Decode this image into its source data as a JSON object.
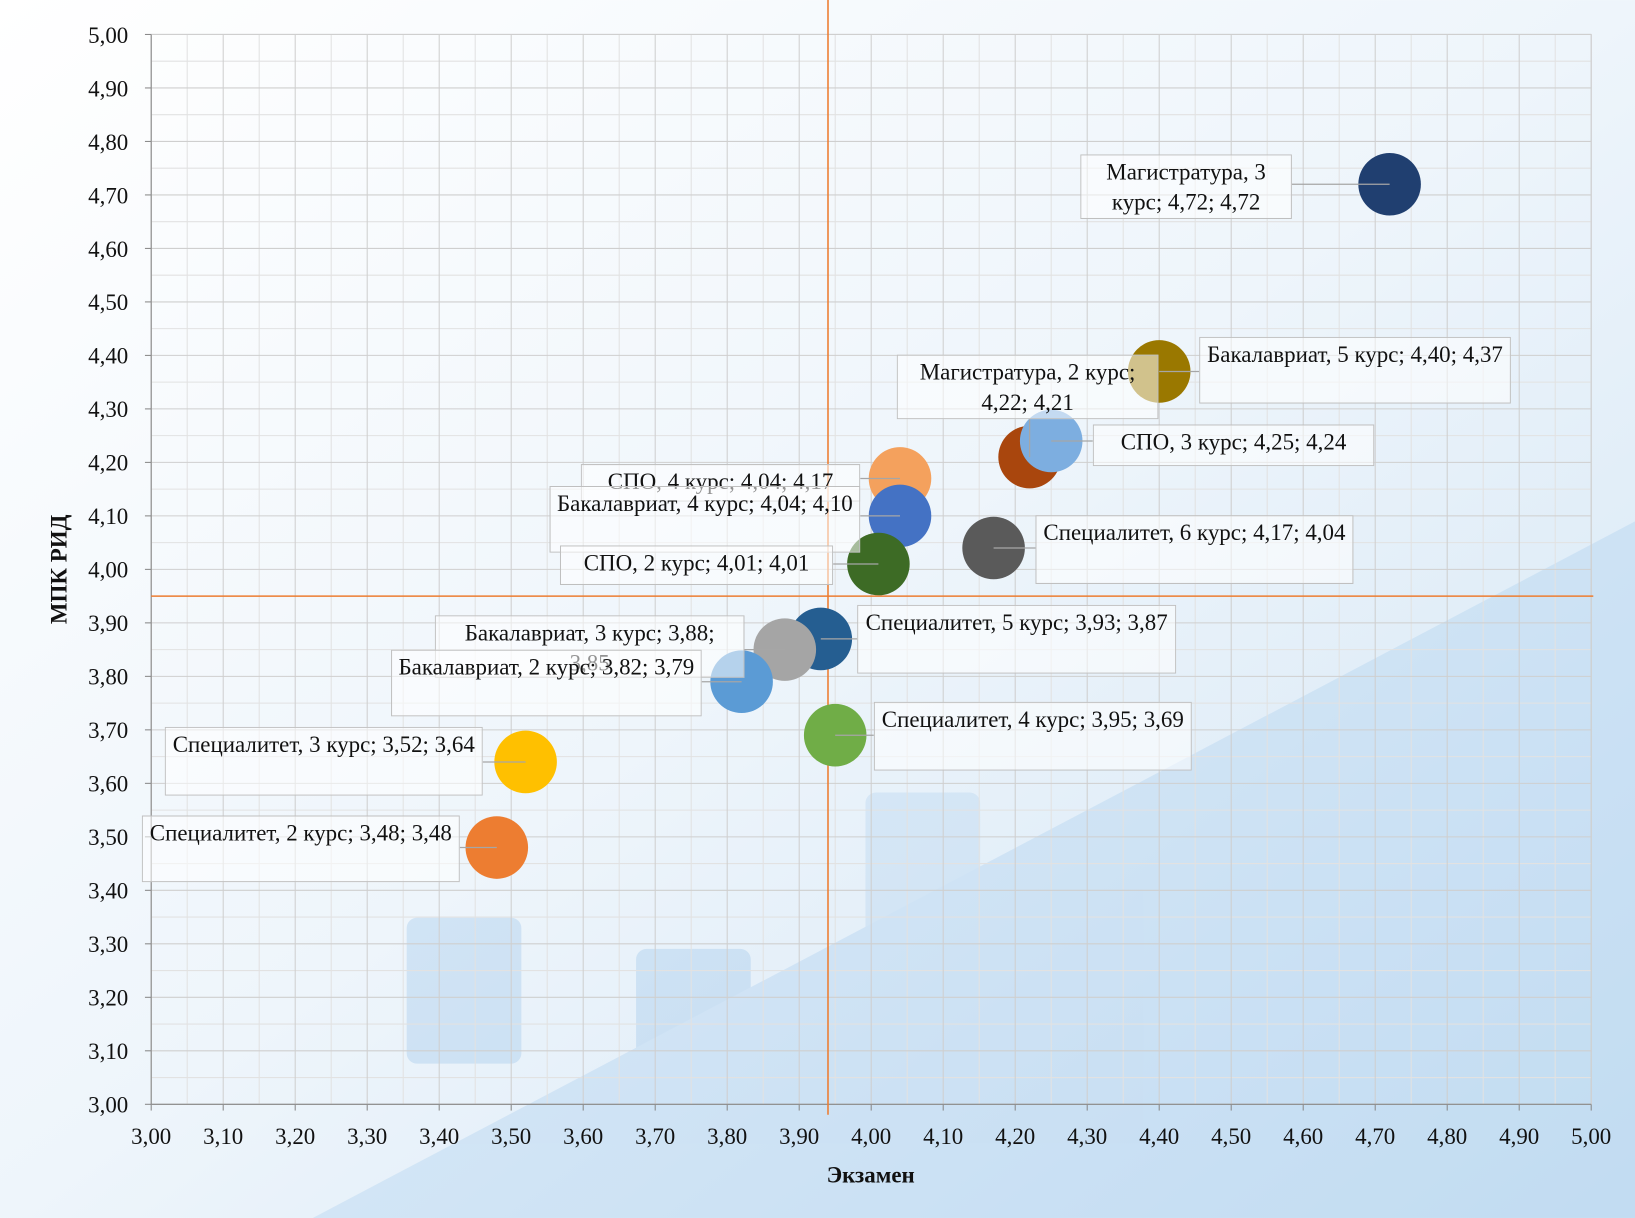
{
  "chart_data": {
    "type": "bubble",
    "x_label": "Экзамен",
    "y_label": "МПК РИД",
    "xlim": [
      3,
      5
    ],
    "ylim": [
      3,
      5
    ],
    "xticks": [
      {
        "value": 3,
        "label": "3,00"
      },
      {
        "value": 3.1,
        "label": "3,10"
      },
      {
        "value": 3.2,
        "label": "3,20"
      },
      {
        "value": 3.3,
        "label": "3,30"
      },
      {
        "value": 3.4,
        "label": "3,40"
      },
      {
        "value": 3.5,
        "label": "3,50"
      },
      {
        "value": 3.6,
        "label": "3,60"
      },
      {
        "value": 3.7,
        "label": "3,70"
      },
      {
        "value": 3.8,
        "label": "3,80"
      },
      {
        "value": 3.9,
        "label": "3,90"
      },
      {
        "value": 4,
        "label": "4,00"
      },
      {
        "value": 4.1,
        "label": "4,10"
      },
      {
        "value": 4.2,
        "label": "4,20"
      },
      {
        "value": 4.3,
        "label": "4,30"
      },
      {
        "value": 4.4,
        "label": "4,40"
      },
      {
        "value": 4.5,
        "label": "4,50"
      },
      {
        "value": 4.6,
        "label": "4,60"
      },
      {
        "value": 4.7,
        "label": "4,70"
      },
      {
        "value": 4.8,
        "label": "4,80"
      },
      {
        "value": 4.9,
        "label": "4,90"
      },
      {
        "value": 5,
        "label": "5,00"
      }
    ],
    "yticks": [
      {
        "value": 3,
        "label": "3,00"
      },
      {
        "value": 3.1,
        "label": "3,10"
      },
      {
        "value": 3.2,
        "label": "3,20"
      },
      {
        "value": 3.3,
        "label": "3,30"
      },
      {
        "value": 3.4,
        "label": "3,40"
      },
      {
        "value": 3.5,
        "label": "3,50"
      },
      {
        "value": 3.6,
        "label": "3,60"
      },
      {
        "value": 3.7,
        "label": "3,70"
      },
      {
        "value": 3.8,
        "label": "3,80"
      },
      {
        "value": 3.9,
        "label": "3,90"
      },
      {
        "value": 4,
        "label": "4,00"
      },
      {
        "value": 4.1,
        "label": "4,10"
      },
      {
        "value": 4.2,
        "label": "4,20"
      },
      {
        "value": 4.3,
        "label": "4,30"
      },
      {
        "value": 4.4,
        "label": "4,40"
      },
      {
        "value": 4.5,
        "label": "4,50"
      },
      {
        "value": 4.6,
        "label": "4,60"
      },
      {
        "value": 4.7,
        "label": "4,70"
      },
      {
        "value": 4.8,
        "label": "4,80"
      },
      {
        "value": 4.9,
        "label": "4,90"
      },
      {
        "value": 5,
        "label": "5,00"
      }
    ],
    "grid": true,
    "minor_grid": true,
    "reference_lines": {
      "x": 3.94,
      "y": 3.95,
      "color": "#ed7d31"
    },
    "points": [
      {
        "label": "Магистратура, 3 курс; 4,72; 4,72",
        "x": 4.72,
        "y": 4.72,
        "color": "#203f70"
      },
      {
        "label": "Бакалавриат, 5 курс; 4,40; 4,37",
        "x": 4.4,
        "y": 4.37,
        "color": "#9a7800"
      },
      {
        "label": "Магистратура, 2 курс; 4,22; 4,21",
        "x": 4.22,
        "y": 4.21,
        "color": "#a9460d"
      },
      {
        "label": "СПО, 3 курс; 4,25; 4,24",
        "x": 4.25,
        "y": 4.24,
        "color": "#7daee0"
      },
      {
        "label": "СПО, 4 курс; 4,04; 4,17",
        "x": 4.04,
        "y": 4.17,
        "color": "#f4a15d"
      },
      {
        "label": "Бакалавриат, 4 курс; 4,04; 4,10",
        "x": 4.04,
        "y": 4.1,
        "color": "#4472c4"
      },
      {
        "label": "СПО, 2 курс; 4,01; 4,01",
        "x": 4.01,
        "y": 4.01,
        "color": "#3d6b25"
      },
      {
        "label": "Специалитет, 6 курс; 4,17; 4,04",
        "x": 4.17,
        "y": 4.04,
        "color": "#5a5a5a"
      },
      {
        "label": "Специалитет, 5 курс; 3,93; 3,87",
        "x": 3.93,
        "y": 3.87,
        "color": "#255e91"
      },
      {
        "label": "Бакалавриат, 3 курс; 3,88; 3,85",
        "x": 3.88,
        "y": 3.85,
        "color": "#a5a5a5"
      },
      {
        "label": "Бакалавриат, 2 курс; 3,82; 3,79",
        "x": 3.82,
        "y": 3.79,
        "color": "#5b9bd5"
      },
      {
        "label": "Специалитет, 4 курс; 3,95; 3,69",
        "x": 3.95,
        "y": 3.69,
        "color": "#70ad47"
      },
      {
        "label": "Специалитет, 3 курс; 3,52; 3,64",
        "x": 3.52,
        "y": 3.64,
        "color": "#ffc000"
      },
      {
        "label": "Специалитет, 2 курс; 3,48; 3,48",
        "x": 3.48,
        "y": 3.48,
        "color": "#ed7d31"
      }
    ]
  }
}
